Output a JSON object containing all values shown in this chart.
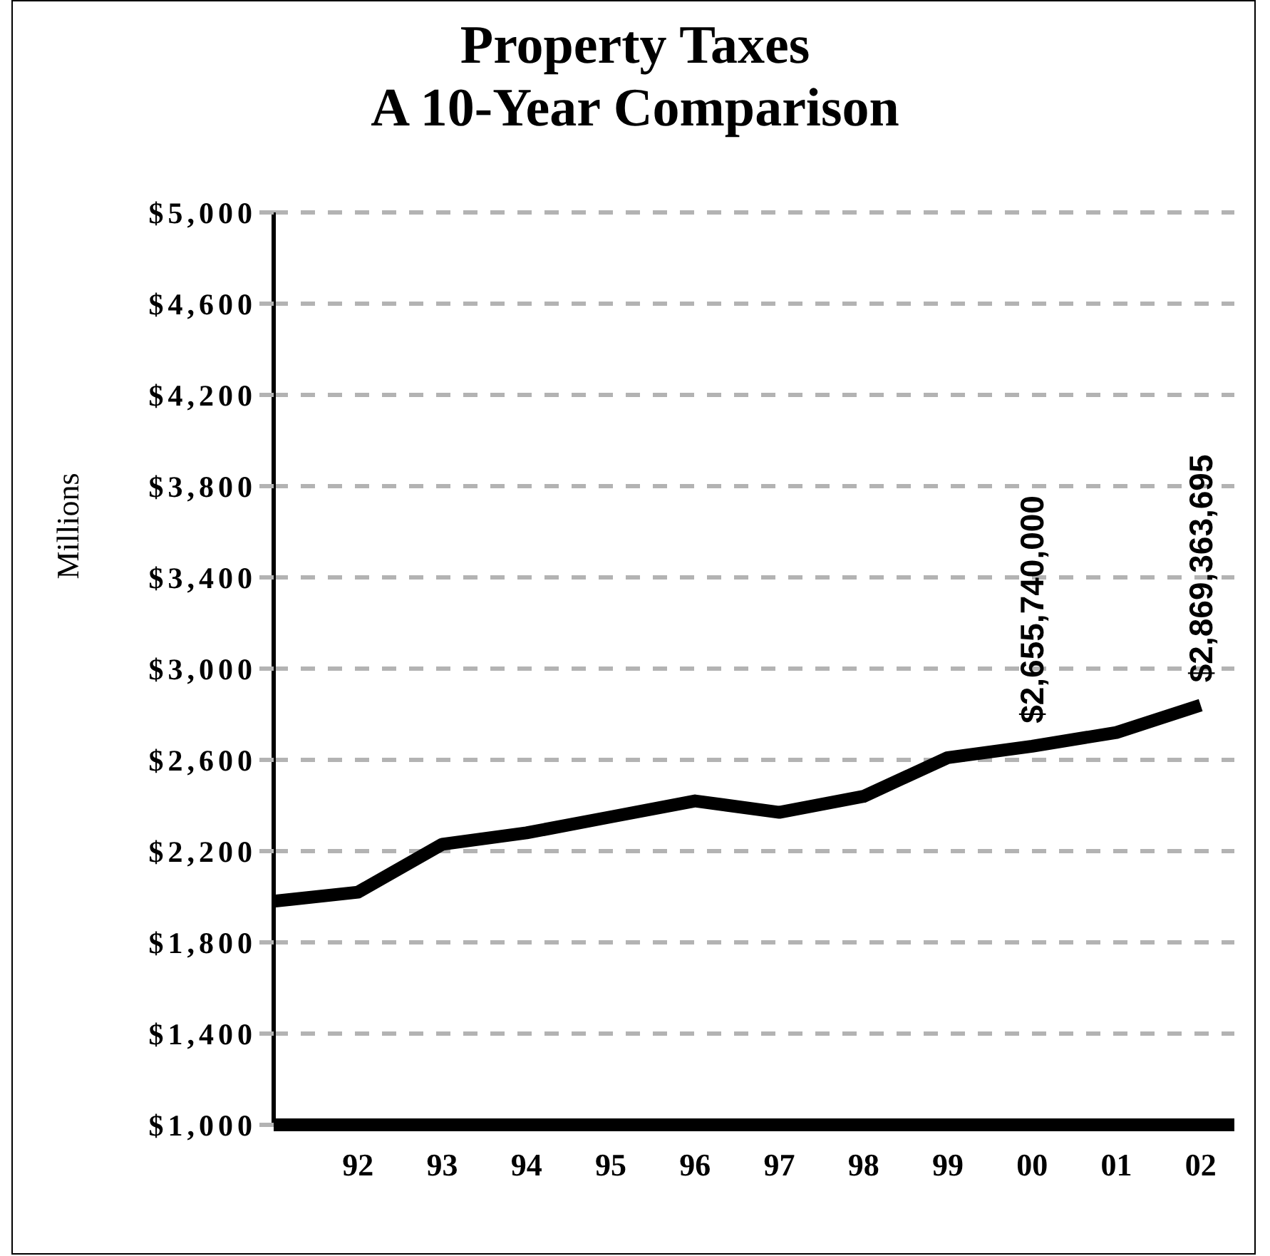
{
  "chart_data": {
    "type": "line",
    "title": "Property Taxes\nA 10-Year Comparison",
    "ylabel": "Millions",
    "x": [
      1991,
      1992,
      1993,
      1994,
      1995,
      1996,
      1997,
      1998,
      1999,
      2000,
      2001,
      2002
    ],
    "series": [
      {
        "color": "#000000",
        "values": [
          1980,
          2020,
          2230,
          2280,
          2350,
          2420,
          2370,
          2440,
          2610,
          2660,
          2720,
          2840
        ]
      }
    ],
    "xlim": [
      1991,
      2002.4
    ],
    "xticks": [
      {
        "value": 1992,
        "label": "92"
      },
      {
        "value": 1993,
        "label": "93"
      },
      {
        "value": 1994,
        "label": "94"
      },
      {
        "value": 1995,
        "label": "95"
      },
      {
        "value": 1996,
        "label": "96"
      },
      {
        "value": 1997,
        "label": "97"
      },
      {
        "value": 1998,
        "label": "98"
      },
      {
        "value": 1999,
        "label": "99"
      },
      {
        "value": 2000,
        "label": "00"
      },
      {
        "value": 2001,
        "label": "01"
      },
      {
        "value": 2002,
        "label": "02"
      }
    ],
    "ylim": [
      1000,
      5000
    ],
    "yticks": [
      {
        "value": 1000,
        "label": "$1,000"
      },
      {
        "value": 1400,
        "label": "$1,400"
      },
      {
        "value": 1800,
        "label": "$1,800"
      },
      {
        "value": 2200,
        "label": "$2,200"
      },
      {
        "value": 2600,
        "label": "$2,600"
      },
      {
        "value": 3000,
        "label": "$3,000"
      },
      {
        "value": 3400,
        "label": "$3,400"
      },
      {
        "value": 3800,
        "label": "$3,800"
      },
      {
        "value": 4200,
        "label": "$4,200"
      },
      {
        "value": 4600,
        "label": "$4,600"
      },
      {
        "value": 5000,
        "label": "$5,000"
      }
    ],
    "annotations": [
      {
        "text": "$2,655,740,000",
        "x": 2000,
        "y": 2660
      },
      {
        "text": "$2,869,363,695",
        "x": 2002,
        "y": 2840
      }
    ],
    "grid": "y",
    "marker": "none",
    "line_style": "solid"
  }
}
